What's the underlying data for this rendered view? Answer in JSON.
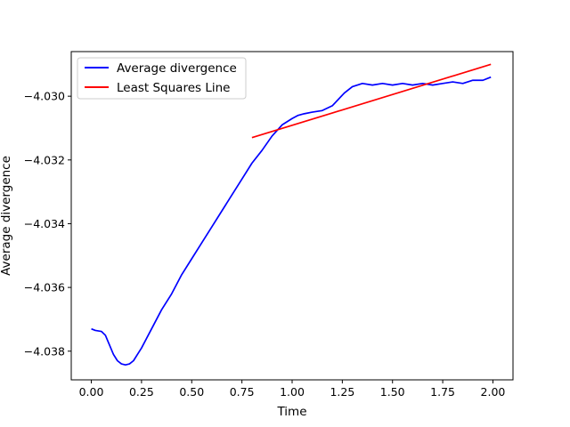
{
  "chart_data": {
    "type": "line",
    "title": "",
    "xlabel": "Time",
    "ylabel": "Average divergence",
    "xlim": [
      -0.1,
      2.1
    ],
    "ylim": [
      -4.0389,
      -4.0286
    ],
    "xticks": [
      0.0,
      0.25,
      0.5,
      0.75,
      1.0,
      1.25,
      1.5,
      1.75,
      2.0
    ],
    "xtick_labels": [
      "0.00",
      "0.25",
      "0.50",
      "0.75",
      "1.00",
      "1.25",
      "1.50",
      "1.75",
      "2.00"
    ],
    "yticks": [
      -4.038,
      -4.036,
      -4.034,
      -4.032,
      -4.03
    ],
    "ytick_labels": [
      "−4.038",
      "−4.036",
      "−4.034",
      "−4.032",
      "−4.030"
    ],
    "grid": false,
    "legend_position": "top-left",
    "series": [
      {
        "name": "Average divergence",
        "color": "#0000ff",
        "x": [
          0.0,
          0.02,
          0.05,
          0.07,
          0.09,
          0.11,
          0.13,
          0.15,
          0.17,
          0.19,
          0.21,
          0.23,
          0.25,
          0.3,
          0.35,
          0.4,
          0.45,
          0.5,
          0.55,
          0.6,
          0.65,
          0.7,
          0.75,
          0.8,
          0.85,
          0.9,
          0.95,
          1.0,
          1.03,
          1.06,
          1.1,
          1.15,
          1.2,
          1.23,
          1.26,
          1.3,
          1.35,
          1.4,
          1.45,
          1.5,
          1.55,
          1.6,
          1.65,
          1.7,
          1.75,
          1.8,
          1.85,
          1.9,
          1.95,
          1.99
        ],
        "y": [
          -4.0373,
          -4.03735,
          -4.03738,
          -4.0375,
          -4.0378,
          -4.0381,
          -4.0383,
          -4.0384,
          -4.03843,
          -4.0384,
          -4.0383,
          -4.0381,
          -4.0379,
          -4.0373,
          -4.0367,
          -4.0362,
          -4.0356,
          -4.0351,
          -4.0346,
          -4.0341,
          -4.0336,
          -4.0331,
          -4.0326,
          -4.0321,
          -4.0317,
          -4.03125,
          -4.0309,
          -4.0307,
          -4.0306,
          -4.03055,
          -4.0305,
          -4.03045,
          -4.0303,
          -4.0301,
          -4.0299,
          -4.0297,
          -4.0296,
          -4.02965,
          -4.0296,
          -4.02965,
          -4.0296,
          -4.02965,
          -4.0296,
          -4.02965,
          -4.0296,
          -4.02955,
          -4.0296,
          -4.0295,
          -4.0295,
          -4.0294
        ]
      },
      {
        "name": "Least Squares Line",
        "color": "#ff0000",
        "x": [
          0.8,
          1.99
        ],
        "y": [
          -4.0313,
          -4.029
        ]
      }
    ]
  }
}
